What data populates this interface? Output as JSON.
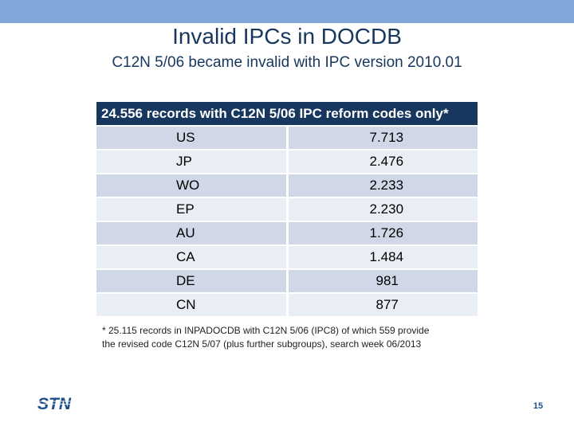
{
  "slide": {
    "title": "Invalid IPCs in DOCDB",
    "subtitle": "C12N 5/06 became invalid with IPC version 2010.01",
    "page_number": "15",
    "logo_text": "STN"
  },
  "table": {
    "header": "24.556 records with C12N 5/06 IPC reform codes only*",
    "rows": [
      {
        "country": "US",
        "count": "7.713"
      },
      {
        "country": "JP",
        "count": "2.476"
      },
      {
        "country": "WO",
        "count": "2.233"
      },
      {
        "country": "EP",
        "count": "2.230"
      },
      {
        "country": "AU",
        "count": "1.726"
      },
      {
        "country": "CA",
        "count": "1.484"
      },
      {
        "country": "DE",
        "count": "981"
      },
      {
        "country": "CN",
        "count": "877"
      }
    ]
  },
  "footnote": {
    "line1": "* 25.115 records in INPADOCDB with C12N 5/06 (IPC8) of which 559 provide",
    "line2": "the revised code  C12N 5/07 (plus further subgroups), search week 06/2013"
  },
  "colors": {
    "top_bar": "#7fa7d7",
    "title_text": "#17375e",
    "table_header": "#17375e",
    "row_odd": "#d0d8e8",
    "row_even": "#e9edf4",
    "logo": "#1f4e8c"
  }
}
